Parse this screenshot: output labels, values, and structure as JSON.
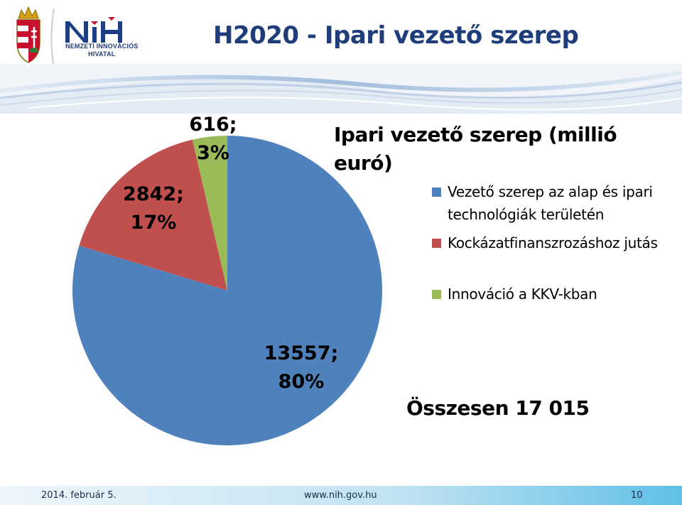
{
  "slide": {
    "title": "H2020 - Ipari vezető szerep",
    "logo_text_line1": "NEMZETI INNOVÁCIÓS",
    "logo_text_line2": "HIVATAL",
    "logo_mark": "NIH",
    "total_label": "Összesen 17 015",
    "footer": {
      "date": "2014. február 5.",
      "url": "www.nih.gov.hu",
      "page": "10"
    }
  },
  "chart_data": {
    "type": "pie",
    "title": "Ipari vezető szerep (millió euró)",
    "legend_position": "right",
    "slices": [
      {
        "name": "Vezető szerep az alap és ipari technológiák területén",
        "value": 13557,
        "percent": "80%",
        "color": "#4f81bd"
      },
      {
        "name": "Kockázatfinanszrozáshoz jutás",
        "value": 2842,
        "percent": "17%",
        "color": "#c0504d"
      },
      {
        "name": "Innováció a KKV-kban",
        "value": 616,
        "percent": "3%",
        "color": "#9bbb59"
      }
    ]
  }
}
